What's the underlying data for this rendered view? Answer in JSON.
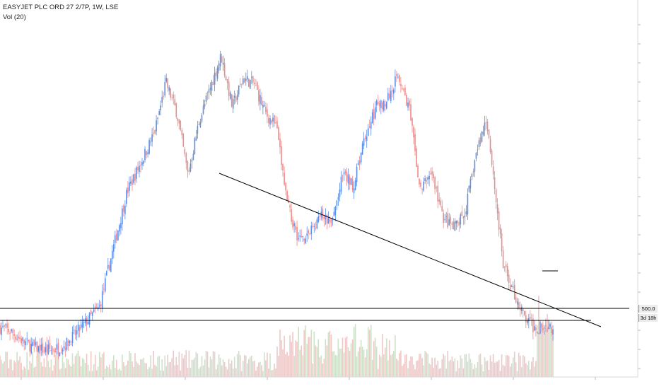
{
  "header": {
    "title": "EASYJET PLC ORD 27 2/7P, 1W, LSE",
    "indicator": "Vol (20)"
  },
  "price_tags": {
    "level": "500.0",
    "countdown": "3d 18h"
  },
  "colors": {
    "up": "#5b8ee6",
    "down": "#ef8a8a",
    "vol_up": "#cfe0cb",
    "vol_down": "#efc8c8",
    "line": "#000000"
  },
  "chart_data": {
    "type": "candlestick",
    "symbol": "EASYJET PLC ORD 27 2/7P",
    "interval": "1W",
    "exchange": "LSE",
    "indicator": "Vol (20)",
    "price_range_approx": [
      280,
      1920
    ],
    "close_series_approx": [
      {
        "t": 0.0,
        "p": 520
      },
      {
        "t": 0.02,
        "p": 500
      },
      {
        "t": 0.04,
        "p": 455
      },
      {
        "t": 0.06,
        "p": 425
      },
      {
        "t": 0.08,
        "p": 410
      },
      {
        "t": 0.1,
        "p": 415
      },
      {
        "t": 0.12,
        "p": 440
      },
      {
        "t": 0.14,
        "p": 500
      },
      {
        "t": 0.16,
        "p": 560
      },
      {
        "t": 0.18,
        "p": 620
      },
      {
        "t": 0.2,
        "p": 850
      },
      {
        "t": 0.23,
        "p": 1180
      },
      {
        "t": 0.26,
        "p": 1350
      },
      {
        "t": 0.28,
        "p": 1470
      },
      {
        "t": 0.3,
        "p": 1710
      },
      {
        "t": 0.32,
        "p": 1560
      },
      {
        "t": 0.34,
        "p": 1260
      },
      {
        "t": 0.36,
        "p": 1520
      },
      {
        "t": 0.38,
        "p": 1680
      },
      {
        "t": 0.4,
        "p": 1840
      },
      {
        "t": 0.42,
        "p": 1590
      },
      {
        "t": 0.44,
        "p": 1730
      },
      {
        "t": 0.46,
        "p": 1700
      },
      {
        "t": 0.48,
        "p": 1560
      },
      {
        "t": 0.5,
        "p": 1490
      },
      {
        "t": 0.52,
        "p": 1110
      },
      {
        "t": 0.54,
        "p": 950
      },
      {
        "t": 0.56,
        "p": 980
      },
      {
        "t": 0.58,
        "p": 1060
      },
      {
        "t": 0.6,
        "p": 1020
      },
      {
        "t": 0.62,
        "p": 1260
      },
      {
        "t": 0.64,
        "p": 1210
      },
      {
        "t": 0.66,
        "p": 1440
      },
      {
        "t": 0.68,
        "p": 1590
      },
      {
        "t": 0.7,
        "p": 1620
      },
      {
        "t": 0.72,
        "p": 1750
      },
      {
        "t": 0.74,
        "p": 1580
      },
      {
        "t": 0.76,
        "p": 1180
      },
      {
        "t": 0.78,
        "p": 1280
      },
      {
        "t": 0.8,
        "p": 1060
      },
      {
        "t": 0.82,
        "p": 1000
      },
      {
        "t": 0.84,
        "p": 1060
      },
      {
        "t": 0.86,
        "p": 1350
      },
      {
        "t": 0.88,
        "p": 1540
      },
      {
        "t": 0.89,
        "p": 1310
      },
      {
        "t": 0.91,
        "p": 820
      },
      {
        "t": 0.93,
        "p": 680
      },
      {
        "t": 0.95,
        "p": 560
      },
      {
        "t": 0.965,
        "p": 520
      }
    ],
    "horizontal_lines": [
      500,
      440
    ],
    "trend_line": {
      "from": {
        "t": 0.34,
        "p": 1260
      },
      "to": {
        "t": 0.98,
        "p": 420
      }
    }
  }
}
